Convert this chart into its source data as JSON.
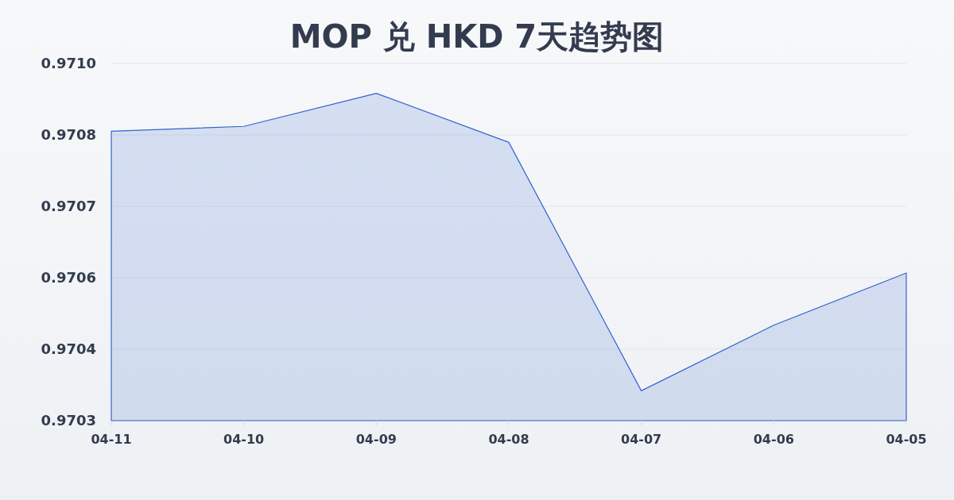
{
  "chart_data": {
    "type": "area",
    "title": "MOP 兑 HKD 7天趋势图",
    "categories": [
      "04-11",
      "04-10",
      "04-09",
      "04-08",
      "04-07",
      "04-06",
      "04-05"
    ],
    "values": [
      0.970843,
      0.970852,
      0.970914,
      0.970822,
      0.970356,
      0.970479,
      0.970577
    ],
    "color": "#3463cf",
    "ylim": [
      0.9703,
      0.97097
    ],
    "yticks": [
      0.9703,
      {
        "value": 0.970434,
        "label": "0.9704"
      },
      {
        "value": 0.970568,
        "label": "0.9706"
      },
      {
        "value": 0.970702,
        "label": "0.9707"
      },
      {
        "value": 0.970836,
        "label": "0.9708"
      },
      {
        "value": 0.97097,
        "label": "0.9710"
      }
    ],
    "grid": "y"
  }
}
